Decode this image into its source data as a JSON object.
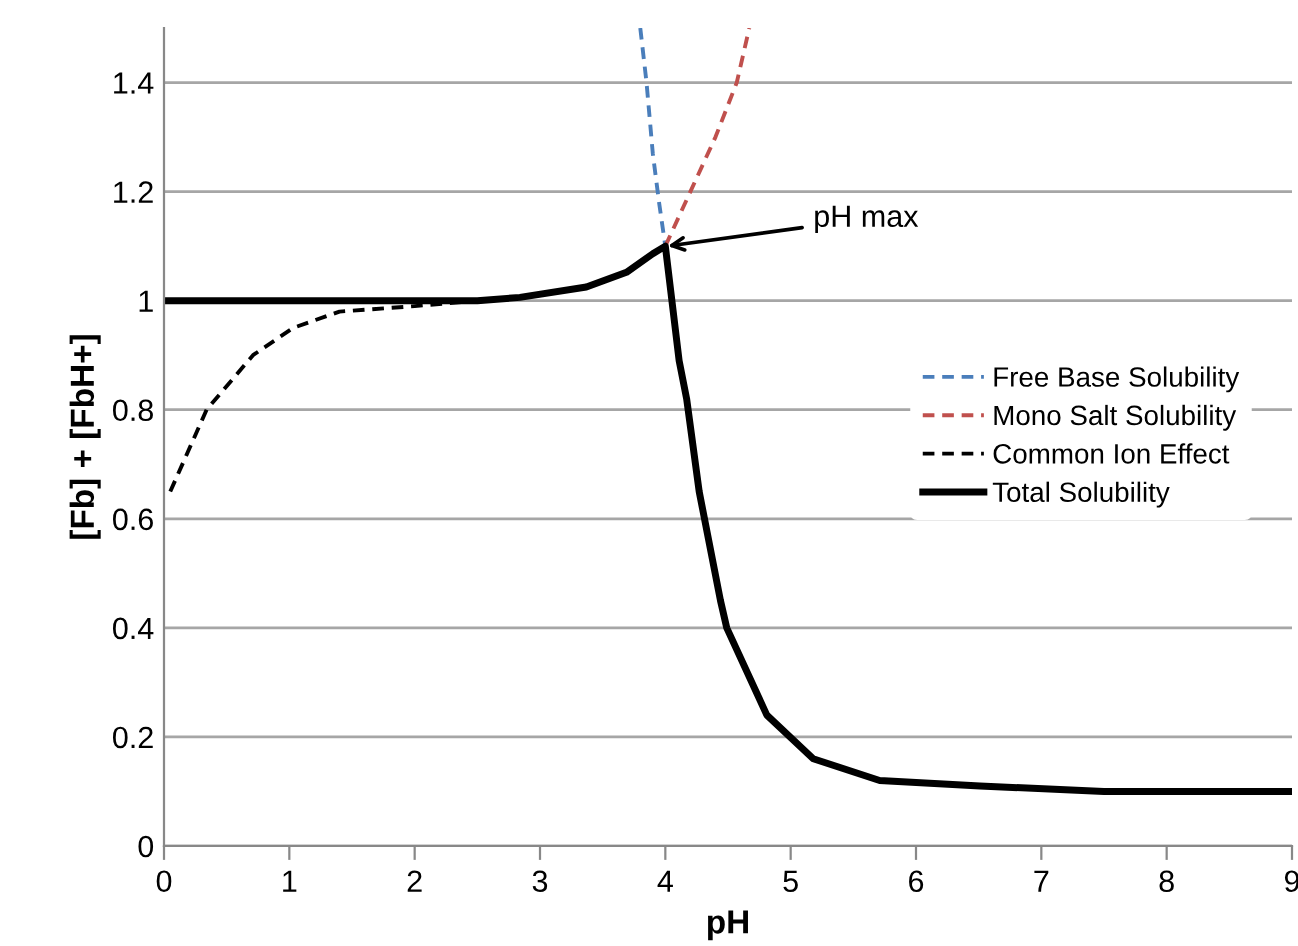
{
  "chart_data": {
    "type": "line",
    "xlabel": "pH",
    "ylabel": "[Fb] + [FbH+]",
    "xlim": [
      0,
      9
    ],
    "ylim": [
      0,
      1.5
    ],
    "xticks": [
      0,
      1,
      2,
      3,
      4,
      5,
      6,
      7,
      8,
      9
    ],
    "yticks": [
      0,
      0.2,
      0.4,
      0.6,
      0.8,
      1,
      1.2,
      1.4
    ],
    "grid": "y",
    "legend": "right",
    "marker": "none",
    "series": [
      {
        "name": "Free Base Solubility",
        "color": "#4a7ebb",
        "line_style": "dashed",
        "x": [
          3.8,
          3.85,
          3.9,
          3.95,
          4.0
        ],
        "values": [
          1.5,
          1.4,
          1.27,
          1.18,
          1.1
        ]
      },
      {
        "name": "Mono Salt Solubility",
        "color": "#c0504d",
        "line_style": "dashed",
        "x": [
          4.0,
          4.2,
          4.4,
          4.57,
          4.67
        ],
        "values": [
          1.1,
          1.2,
          1.3,
          1.4,
          1.5
        ]
      },
      {
        "name": "Common Ion Effect",
        "color": "#000000",
        "line_style": "dashed",
        "x": [
          0.05,
          0.34,
          0.71,
          1.03,
          1.4,
          2.0,
          2.5
        ],
        "values": [
          0.65,
          0.8,
          0.9,
          0.95,
          0.98,
          0.99,
          1.0
        ]
      },
      {
        "name": "Total Solubility",
        "color": "#000000",
        "line_style": "solid",
        "x": [
          0,
          1,
          2,
          2.5,
          2.84,
          3.37,
          3.69,
          3.9,
          4.0,
          4.11,
          4.17,
          4.27,
          4.44,
          4.49,
          4.81,
          5.18,
          5.71,
          6.51,
          7.5,
          9
        ],
        "values": [
          1,
          1,
          1,
          1,
          1.006,
          1.025,
          1.052,
          1.086,
          1.1,
          0.89,
          0.82,
          0.65,
          0.45,
          0.4,
          0.24,
          0.16,
          0.12,
          0.11,
          0.1,
          0.1
        ]
      }
    ],
    "annotations": [
      {
        "text": "pH max",
        "x": 4.02,
        "y": 1.1
      }
    ]
  }
}
